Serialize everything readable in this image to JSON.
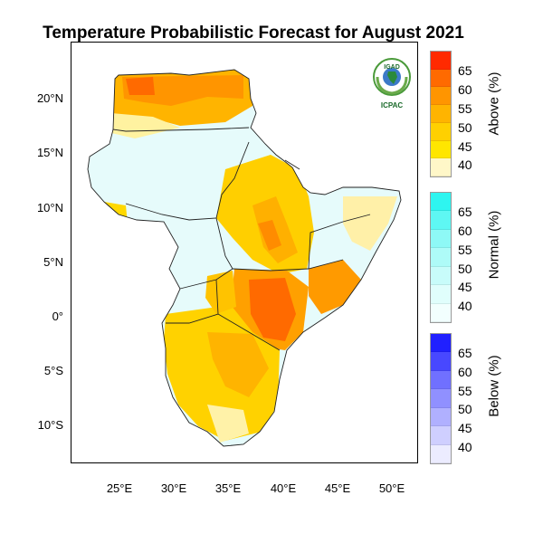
{
  "title": "Temperature Probabilistic Forecast for August 2021",
  "map": {
    "lat_labels": [
      "20°N",
      "15°N",
      "10°N",
      "5°N",
      "0°",
      "5°S",
      "10°S"
    ],
    "lon_labels": [
      "25°E",
      "30°E",
      "35°E",
      "40°E",
      "45°E",
      "50°E"
    ],
    "lon_range": [
      20,
      52
    ],
    "lat_range": [
      -13.5,
      24
    ]
  },
  "logo": {
    "top_text": "IGAD",
    "bottom_text": "ICPAC"
  },
  "legend": {
    "above": {
      "label": "Above (%)",
      "ticks": [
        "65",
        "60",
        "55",
        "50",
        "45",
        "40"
      ],
      "colors": [
        "#ff2a00",
        "#ff6a00",
        "#ff9500",
        "#ffb400",
        "#ffd000",
        "#ffe600",
        "#fff7c8"
      ]
    },
    "normal": {
      "label": "Normal (%)",
      "ticks": [
        "65",
        "60",
        "55",
        "50",
        "45",
        "40"
      ],
      "colors": [
        "#2ef5f0",
        "#5ef7f3",
        "#8ef9f6",
        "#aefbf8",
        "#c8fcfa",
        "#e0fefc",
        "#f2fffe"
      ]
    },
    "below": {
      "label": "Below (%)",
      "ticks": [
        "65",
        "60",
        "55",
        "50",
        "45",
        "40"
      ],
      "colors": [
        "#2020ff",
        "#4848ff",
        "#7070ff",
        "#9090ff",
        "#b0b0ff",
        "#cfcfff",
        "#ececff"
      ]
    }
  }
}
